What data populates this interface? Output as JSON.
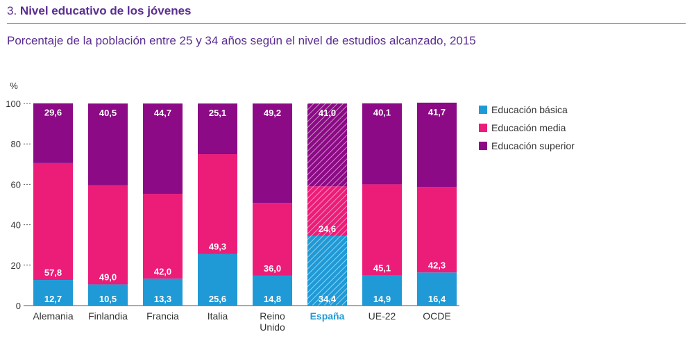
{
  "header": {
    "number": "3.",
    "title": "Nivel educativo de los jóvenes",
    "subtitle": "Porcentaje de la población entre 25 y 34 años según el nivel de estudios alcanzado, 2015"
  },
  "colors": {
    "basica": "#1f9ad6",
    "media": "#ec1c79",
    "superior": "#8c0a85",
    "highlight_label": "#1f9ad6",
    "axis_text": "#333333"
  },
  "chart_data": {
    "type": "bar",
    "stacked": true,
    "title": "Porcentaje de la población entre 25 y 34 años según el nivel de estudios alcanzado, 2015",
    "ylabel": "%",
    "ylim": [
      0,
      100
    ],
    "yticks": [
      0,
      20,
      40,
      60,
      80,
      100
    ],
    "categories": [
      "Alemania",
      "Finlandia",
      "Francia",
      "Italia",
      "Reino Unido",
      "España",
      "UE-22",
      "OCDE"
    ],
    "category_labels": [
      [
        "Alemania"
      ],
      [
        "Finlandia"
      ],
      [
        "Francia"
      ],
      [
        "Italia"
      ],
      [
        "Reino",
        "Unido"
      ],
      [
        "España"
      ],
      [
        "UE-22"
      ],
      [
        "OCDE"
      ]
    ],
    "highlight_category": "España",
    "series": [
      {
        "name": "Educación básica",
        "color": "#1f9ad6",
        "values": [
          12.7,
          10.5,
          13.3,
          25.6,
          14.8,
          34.4,
          14.9,
          16.4
        ],
        "labels": [
          "12,7",
          "10,5",
          "13,3",
          "25,6",
          "14,8",
          "34,4",
          "14,9",
          "16,4"
        ]
      },
      {
        "name": "Educación media",
        "color": "#ec1c79",
        "values": [
          57.8,
          49.0,
          42.0,
          49.3,
          36.0,
          24.6,
          45.1,
          42.3
        ],
        "labels": [
          "57,8",
          "49,0",
          "42,0",
          "49,3",
          "36,0",
          "24,6",
          "45,1",
          "42,3"
        ]
      },
      {
        "name": "Educación superior",
        "color": "#8c0a85",
        "values": [
          29.6,
          40.5,
          44.7,
          25.1,
          49.2,
          41.0,
          40.1,
          41.7
        ],
        "labels": [
          "29,6",
          "40,5",
          "44,7",
          "25,1",
          "49,2",
          "41,0",
          "40,1",
          "41,7"
        ]
      }
    ],
    "legend_position": "right",
    "grid": false
  }
}
